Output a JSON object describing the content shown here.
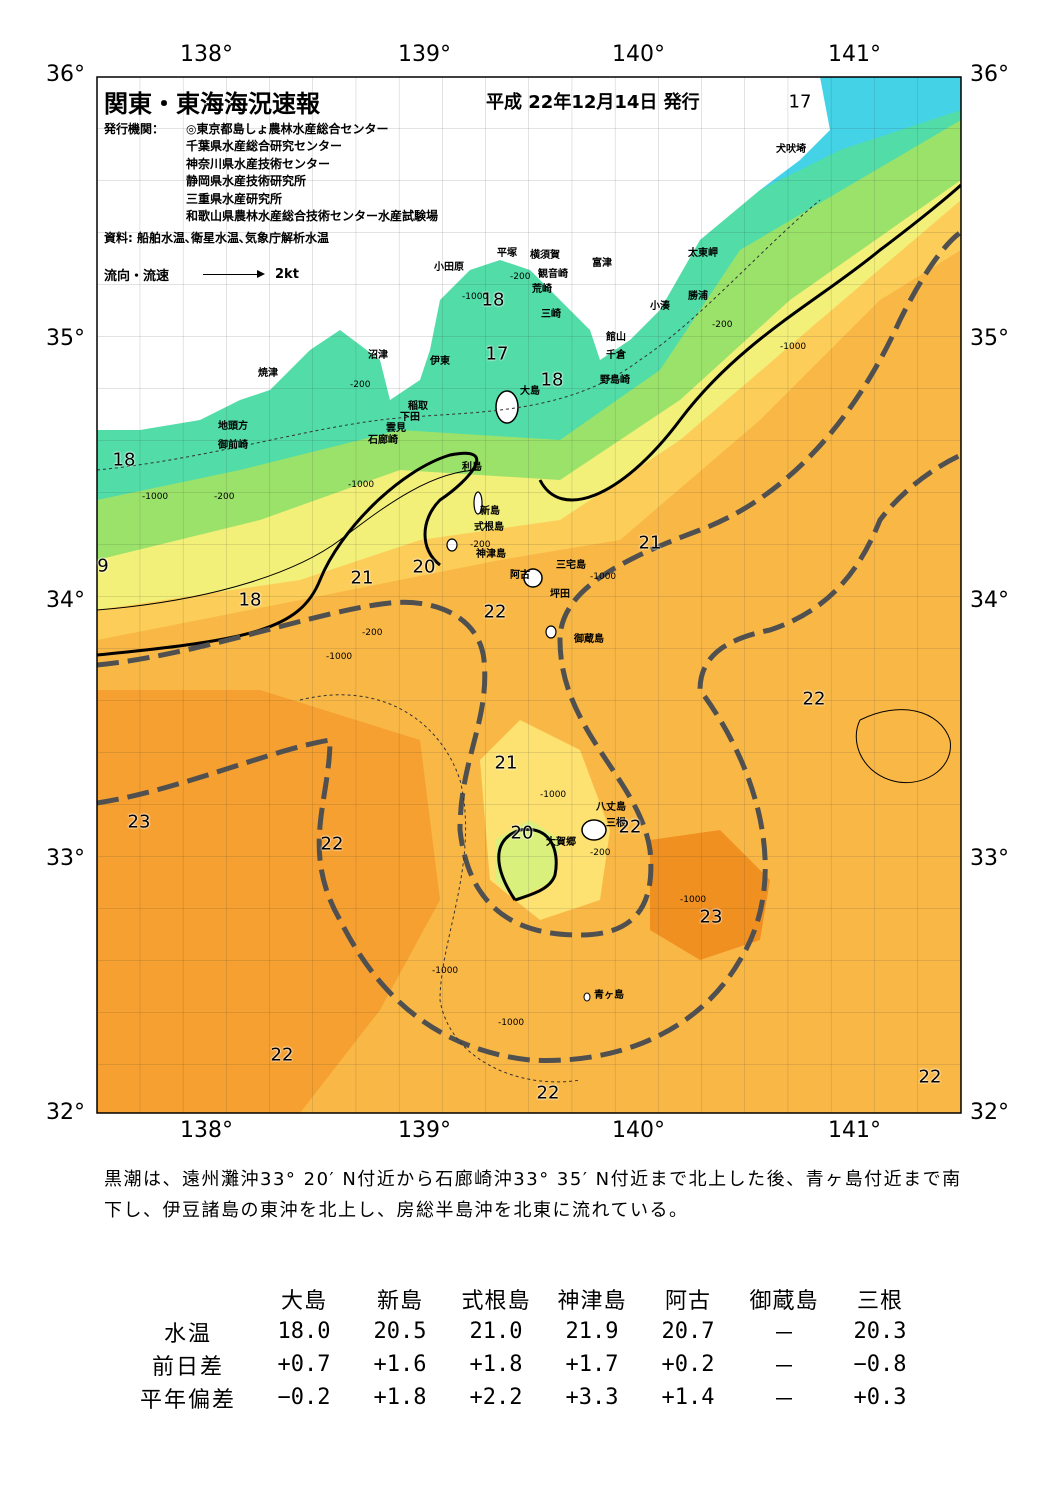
{
  "header": {
    "title": "関東・東海海況速報",
    "date": "平成 22年12月14日 発行"
  },
  "issuer": {
    "label": "発行機関：",
    "orgs": [
      "◎東京都島しょ農林水産総合センター",
      "千葉県水産総合研究センター",
      "神奈川県水産技術センター",
      "静岡県水産技術研究所",
      "三重県水産研究所",
      "和歌山県農林水産総合技術センター水産試験場"
    ]
  },
  "source": "資料: 船舶水温､衛星水温､気象庁解析水温",
  "flow_legend": {
    "label": "流向・流速",
    "value": "2kt"
  },
  "axes": {
    "lon_labels": [
      "138°",
      "139°",
      "140°",
      "141°"
    ],
    "lat_labels": [
      "36°",
      "35°",
      "34°",
      "33°",
      "32°"
    ]
  },
  "place_names": [
    "犬吠埼",
    "太東岬",
    "勝浦",
    "小湊",
    "富津",
    "館山",
    "千倉",
    "野島崎",
    "横須賀",
    "観音崎",
    "荒崎",
    "三崎",
    "平塚",
    "小田原",
    "沼津",
    "伊東",
    "稲取",
    "下田",
    "雲見",
    "石廊崎",
    "焼津",
    "地頭方",
    "御前崎",
    "大島",
    "利島",
    "新島",
    "式根島",
    "神津島",
    "三宅島",
    "阿古",
    "坪田",
    "御蔵島",
    "八丈島",
    "大賀郷",
    "三根",
    "青ヶ島"
  ],
  "isotherms": [
    "17",
    "17",
    "18",
    "18",
    "18",
    "18",
    "9",
    "21",
    "20",
    "21",
    "22",
    "21",
    "20",
    "22",
    "22",
    "23",
    "22",
    "23",
    "22",
    "22",
    "22",
    "22"
  ],
  "depth_labels": [
    "-200",
    "-1000",
    "-200",
    "-200",
    "-1000",
    "-1000",
    "-200",
    "-1000",
    "-200",
    "-1000",
    "-200",
    "-1000",
    "-1000",
    "-1000",
    "-1000",
    "-200",
    "-1000"
  ],
  "description": "黒潮は、遠州灘沖33° 20′ N付近から石廊崎沖33° 35′ N付近まで北上した後、青ヶ島付近まで南下し、伊豆諸島の東沖を北上し、房総半島沖を北東に流れている。",
  "table": {
    "stations": [
      "大島",
      "新島",
      "式根島",
      "神津島",
      "阿古",
      "御蔵島",
      "三根"
    ],
    "rows": [
      {
        "label": "水温",
        "values": [
          "18.0",
          "20.5",
          "21.0",
          "21.9",
          "20.7",
          "－",
          "20.3"
        ]
      },
      {
        "label": "前日差",
        "values": [
          "+0.7",
          "+1.6",
          "+1.8",
          "+1.7",
          "+0.2",
          "－",
          "−0.8"
        ]
      },
      {
        "label": "平年偏差",
        "values": [
          "−0.2",
          "+1.8",
          "+2.2",
          "+3.3",
          "+1.4",
          "－",
          "+0.3"
        ]
      }
    ]
  },
  "colors": {
    "temp17": "#44d8e8",
    "temp18": "#4fe0b0",
    "temp19": "#8fdc70",
    "temp20": "#d6f07a",
    "temp21": "#fbe86c",
    "temp22": "#f9b846",
    "temp23": "#f0901e",
    "kuroshio": "#505050"
  }
}
